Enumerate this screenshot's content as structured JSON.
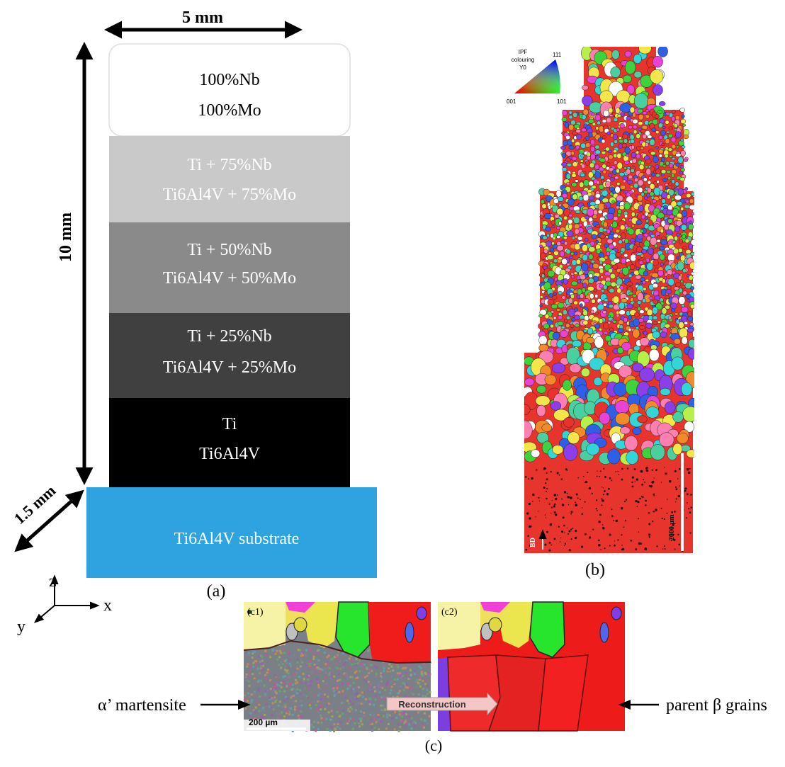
{
  "panel_a": {
    "width_label": "5 mm",
    "height_label": "10 mm",
    "depth_label": "1.5 mm",
    "layers": [
      {
        "line1": "100%Nb",
        "line2": "100%Mo",
        "fill": "#ffffff",
        "text_color": "#000000"
      },
      {
        "line1": "Ti + 75%Nb",
        "line2": "Ti6Al4V + 75%Mo",
        "fill": "#c9c9c9",
        "text_color": "#ffffff"
      },
      {
        "line1": "Ti + 50%Nb",
        "line2": "Ti6Al4V + 50%Mo",
        "fill": "#8a8a8a",
        "text_color": "#ffffff"
      },
      {
        "line1": "Ti + 25%Nb",
        "line2": "Ti6Al4V + 25%Mo",
        "fill": "#404040",
        "text_color": "#ffffff"
      },
      {
        "line1": "Ti",
        "line2": "Ti6Al4V",
        "fill": "#000000",
        "text_color": "#ffffff"
      }
    ],
    "substrate_label": "Ti6Al4V substrate",
    "substrate_color": "#2ea3df",
    "axes": {
      "z": "z",
      "x": "x",
      "y": "y"
    },
    "caption": "(a)"
  },
  "panel_b": {
    "legend_title_1": "IPF",
    "legend_title_2": "colouring",
    "legend_title_3": "Y0",
    "legend_corner_001": "001",
    "legend_corner_101": "101",
    "legend_corner_111": "111",
    "scale_label": "2000 µm",
    "direction_label": "BD",
    "caption": "(b)"
  },
  "panel_c": {
    "c1_label": "(c1)",
    "c2_label": "(c2)",
    "scale_label": "200 µm",
    "arrow_label": "Reconstruction",
    "left_annotation": "α’ martensite",
    "right_annotation": "parent β grains",
    "caption": "(c)"
  }
}
